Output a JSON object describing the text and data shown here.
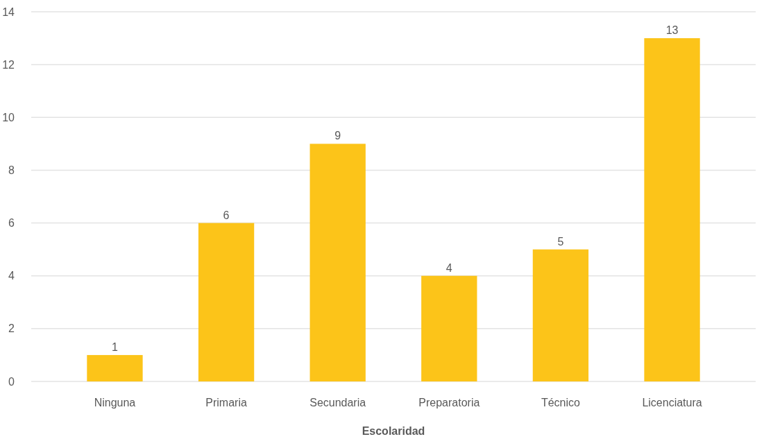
{
  "chart_data": {
    "type": "bar",
    "xlabel": "Escolaridad",
    "categories": [
      "Ninguna",
      "Primaria",
      "Secundaria",
      "Preparatoria",
      "Técnico",
      "Licenciatura"
    ],
    "values": [
      1,
      6,
      9,
      4,
      5,
      13
    ],
    "color": "#fcc419",
    "ylim": [
      0,
      14
    ],
    "yticks": [
      0,
      2,
      4,
      6,
      8,
      10,
      12,
      14
    ],
    "grid": "y",
    "data_labels": true
  }
}
